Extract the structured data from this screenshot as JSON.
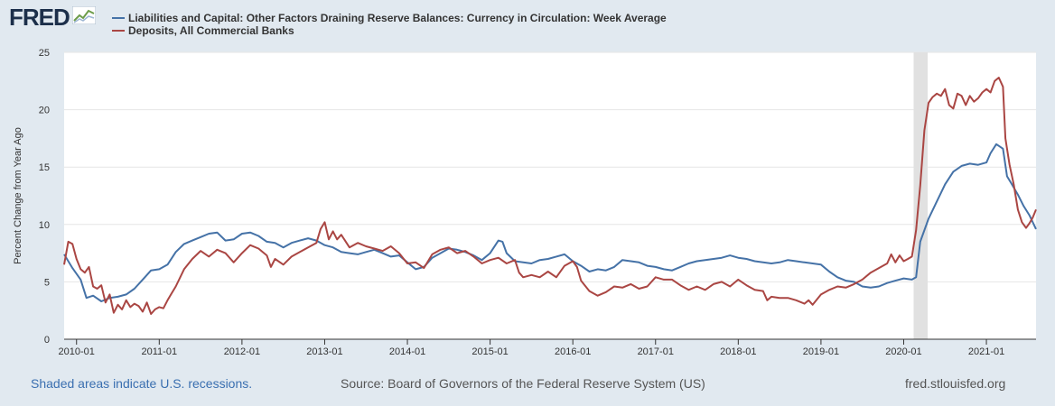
{
  "header": {
    "logo_text": "FRED",
    "logo_icon": "fred-chart-icon"
  },
  "footer": {
    "recession_note": "Shaded areas indicate U.S. recessions.",
    "source": "Source: Board of Governors of the Federal Reserve System (US)",
    "site": "fred.stlouisfed.org"
  },
  "colors": {
    "background": "#e1e9f0",
    "plot_background": "#ffffff",
    "recession_shade": "#e1e1e1",
    "series_blue": "#4572a7",
    "series_red": "#aa4643"
  },
  "chart_data": {
    "type": "line",
    "title": "",
    "xlabel": "",
    "ylabel": "Percent Change from Year Ago",
    "ylim": [
      0,
      25
    ],
    "yticks": [
      "0",
      "5",
      "10",
      "15",
      "20",
      "25"
    ],
    "xlim": [
      2009.85,
      2021.6
    ],
    "xticks": [
      {
        "label": "2010-01",
        "value": 2010.0
      },
      {
        "label": "2011-01",
        "value": 2011.0
      },
      {
        "label": "2012-01",
        "value": 2012.0
      },
      {
        "label": "2013-01",
        "value": 2013.0
      },
      {
        "label": "2014-01",
        "value": 2014.0
      },
      {
        "label": "2015-01",
        "value": 2015.0
      },
      {
        "label": "2016-01",
        "value": 2016.0
      },
      {
        "label": "2017-01",
        "value": 2017.0
      },
      {
        "label": "2018-01",
        "value": 2018.0
      },
      {
        "label": "2019-01",
        "value": 2019.0
      },
      {
        "label": "2020-01",
        "value": 2020.0
      },
      {
        "label": "2021-01",
        "value": 2021.0
      }
    ],
    "recessions": [
      {
        "start": 2020.12,
        "end": 2020.29
      }
    ],
    "grid": true,
    "legend_position": "top-left",
    "series": [
      {
        "name": "Liabilities and Capital: Other Factors Draining Reserve Balances: Currency in Circulation: Week Average",
        "color": "#4572a7",
        "points": [
          [
            2009.85,
            7.4
          ],
          [
            2009.95,
            6.2
          ],
          [
            2010.05,
            5.2
          ],
          [
            2010.12,
            3.6
          ],
          [
            2010.2,
            3.8
          ],
          [
            2010.3,
            3.3
          ],
          [
            2010.4,
            3.6
          ],
          [
            2010.5,
            3.7
          ],
          [
            2010.6,
            3.9
          ],
          [
            2010.7,
            4.4
          ],
          [
            2010.8,
            5.2
          ],
          [
            2010.9,
            6.0
          ],
          [
            2011.0,
            6.1
          ],
          [
            2011.1,
            6.5
          ],
          [
            2011.2,
            7.6
          ],
          [
            2011.3,
            8.3
          ],
          [
            2011.4,
            8.6
          ],
          [
            2011.5,
            8.9
          ],
          [
            2011.6,
            9.2
          ],
          [
            2011.7,
            9.3
          ],
          [
            2011.8,
            8.6
          ],
          [
            2011.9,
            8.7
          ],
          [
            2012.0,
            9.2
          ],
          [
            2012.1,
            9.3
          ],
          [
            2012.2,
            9.0
          ],
          [
            2012.3,
            8.5
          ],
          [
            2012.4,
            8.4
          ],
          [
            2012.5,
            8.0
          ],
          [
            2012.6,
            8.4
          ],
          [
            2012.7,
            8.6
          ],
          [
            2012.8,
            8.8
          ],
          [
            2012.9,
            8.6
          ],
          [
            2013.0,
            8.2
          ],
          [
            2013.1,
            8.0
          ],
          [
            2013.2,
            7.6
          ],
          [
            2013.3,
            7.5
          ],
          [
            2013.4,
            7.4
          ],
          [
            2013.5,
            7.6
          ],
          [
            2013.6,
            7.8
          ],
          [
            2013.7,
            7.5
          ],
          [
            2013.8,
            7.2
          ],
          [
            2013.9,
            7.3
          ],
          [
            2014.0,
            6.7
          ],
          [
            2014.1,
            6.1
          ],
          [
            2014.2,
            6.3
          ],
          [
            2014.3,
            7.1
          ],
          [
            2014.4,
            7.5
          ],
          [
            2014.5,
            7.9
          ],
          [
            2014.6,
            7.8
          ],
          [
            2014.7,
            7.6
          ],
          [
            2014.8,
            7.3
          ],
          [
            2014.9,
            6.9
          ],
          [
            2015.0,
            7.5
          ],
          [
            2015.1,
            8.6
          ],
          [
            2015.15,
            8.5
          ],
          [
            2015.2,
            7.5
          ],
          [
            2015.3,
            6.8
          ],
          [
            2015.4,
            6.7
          ],
          [
            2015.5,
            6.6
          ],
          [
            2015.6,
            6.9
          ],
          [
            2015.7,
            7.0
          ],
          [
            2015.8,
            7.2
          ],
          [
            2015.9,
            7.4
          ],
          [
            2016.0,
            6.8
          ],
          [
            2016.1,
            6.4
          ],
          [
            2016.2,
            5.9
          ],
          [
            2016.3,
            6.1
          ],
          [
            2016.4,
            6.0
          ],
          [
            2016.5,
            6.3
          ],
          [
            2016.6,
            6.9
          ],
          [
            2016.7,
            6.8
          ],
          [
            2016.8,
            6.7
          ],
          [
            2016.9,
            6.4
          ],
          [
            2017.0,
            6.3
          ],
          [
            2017.1,
            6.1
          ],
          [
            2017.2,
            6.0
          ],
          [
            2017.3,
            6.3
          ],
          [
            2017.4,
            6.6
          ],
          [
            2017.5,
            6.8
          ],
          [
            2017.6,
            6.9
          ],
          [
            2017.7,
            7.0
          ],
          [
            2017.8,
            7.1
          ],
          [
            2017.9,
            7.3
          ],
          [
            2018.0,
            7.1
          ],
          [
            2018.1,
            7.0
          ],
          [
            2018.2,
            6.8
          ],
          [
            2018.3,
            6.7
          ],
          [
            2018.4,
            6.6
          ],
          [
            2018.5,
            6.7
          ],
          [
            2018.6,
            6.9
          ],
          [
            2018.7,
            6.8
          ],
          [
            2018.8,
            6.7
          ],
          [
            2018.9,
            6.6
          ],
          [
            2019.0,
            6.5
          ],
          [
            2019.1,
            5.9
          ],
          [
            2019.2,
            5.4
          ],
          [
            2019.3,
            5.1
          ],
          [
            2019.4,
            5.0
          ],
          [
            2019.5,
            4.6
          ],
          [
            2019.6,
            4.5
          ],
          [
            2019.7,
            4.6
          ],
          [
            2019.8,
            4.9
          ],
          [
            2019.9,
            5.1
          ],
          [
            2020.0,
            5.3
          ],
          [
            2020.1,
            5.2
          ],
          [
            2020.15,
            5.4
          ],
          [
            2020.2,
            8.5
          ],
          [
            2020.3,
            10.5
          ],
          [
            2020.4,
            12.0
          ],
          [
            2020.5,
            13.5
          ],
          [
            2020.6,
            14.6
          ],
          [
            2020.7,
            15.1
          ],
          [
            2020.8,
            15.3
          ],
          [
            2020.9,
            15.2
          ],
          [
            2021.0,
            15.4
          ],
          [
            2021.05,
            16.2
          ],
          [
            2021.12,
            17.0
          ],
          [
            2021.2,
            16.6
          ],
          [
            2021.25,
            14.2
          ],
          [
            2021.3,
            13.6
          ],
          [
            2021.38,
            12.6
          ],
          [
            2021.45,
            11.6
          ],
          [
            2021.52,
            10.8
          ],
          [
            2021.6,
            9.6
          ]
        ]
      },
      {
        "name": "Deposits, All Commercial Banks",
        "color": "#aa4643",
        "points": [
          [
            2009.85,
            6.5
          ],
          [
            2009.9,
            8.5
          ],
          [
            2009.95,
            8.3
          ],
          [
            2010.0,
            7.0
          ],
          [
            2010.05,
            6.1
          ],
          [
            2010.1,
            5.8
          ],
          [
            2010.15,
            6.3
          ],
          [
            2010.2,
            4.6
          ],
          [
            2010.25,
            4.4
          ],
          [
            2010.3,
            4.7
          ],
          [
            2010.35,
            3.2
          ],
          [
            2010.4,
            3.9
          ],
          [
            2010.45,
            2.3
          ],
          [
            2010.5,
            3.0
          ],
          [
            2010.55,
            2.6
          ],
          [
            2010.6,
            3.4
          ],
          [
            2010.65,
            2.8
          ],
          [
            2010.7,
            3.1
          ],
          [
            2010.75,
            2.9
          ],
          [
            2010.8,
            2.4
          ],
          [
            2010.85,
            3.2
          ],
          [
            2010.9,
            2.2
          ],
          [
            2010.95,
            2.6
          ],
          [
            2011.0,
            2.8
          ],
          [
            2011.05,
            2.7
          ],
          [
            2011.1,
            3.4
          ],
          [
            2011.15,
            4.0
          ],
          [
            2011.2,
            4.6
          ],
          [
            2011.3,
            6.1
          ],
          [
            2011.4,
            7.0
          ],
          [
            2011.5,
            7.7
          ],
          [
            2011.6,
            7.2
          ],
          [
            2011.7,
            7.8
          ],
          [
            2011.8,
            7.5
          ],
          [
            2011.9,
            6.7
          ],
          [
            2012.0,
            7.5
          ],
          [
            2012.1,
            8.2
          ],
          [
            2012.2,
            7.9
          ],
          [
            2012.3,
            7.3
          ],
          [
            2012.35,
            6.3
          ],
          [
            2012.4,
            7.0
          ],
          [
            2012.5,
            6.5
          ],
          [
            2012.6,
            7.2
          ],
          [
            2012.7,
            7.6
          ],
          [
            2012.8,
            8.0
          ],
          [
            2012.9,
            8.4
          ],
          [
            2012.95,
            9.6
          ],
          [
            2013.0,
            10.2
          ],
          [
            2013.05,
            8.7
          ],
          [
            2013.1,
            9.4
          ],
          [
            2013.15,
            8.7
          ],
          [
            2013.2,
            9.1
          ],
          [
            2013.3,
            8.0
          ],
          [
            2013.4,
            8.4
          ],
          [
            2013.5,
            8.1
          ],
          [
            2013.6,
            7.9
          ],
          [
            2013.7,
            7.7
          ],
          [
            2013.8,
            8.1
          ],
          [
            2013.9,
            7.5
          ],
          [
            2014.0,
            6.6
          ],
          [
            2014.1,
            6.7
          ],
          [
            2014.2,
            6.2
          ],
          [
            2014.3,
            7.4
          ],
          [
            2014.4,
            7.8
          ],
          [
            2014.5,
            8.0
          ],
          [
            2014.6,
            7.5
          ],
          [
            2014.7,
            7.7
          ],
          [
            2014.8,
            7.2
          ],
          [
            2014.9,
            6.6
          ],
          [
            2015.0,
            6.9
          ],
          [
            2015.1,
            7.1
          ],
          [
            2015.2,
            6.6
          ],
          [
            2015.3,
            6.9
          ],
          [
            2015.35,
            5.8
          ],
          [
            2015.4,
            5.4
          ],
          [
            2015.5,
            5.6
          ],
          [
            2015.6,
            5.4
          ],
          [
            2015.7,
            5.9
          ],
          [
            2015.8,
            5.4
          ],
          [
            2015.9,
            6.4
          ],
          [
            2016.0,
            6.8
          ],
          [
            2016.05,
            6.3
          ],
          [
            2016.1,
            5.1
          ],
          [
            2016.2,
            4.2
          ],
          [
            2016.3,
            3.8
          ],
          [
            2016.4,
            4.1
          ],
          [
            2016.5,
            4.6
          ],
          [
            2016.6,
            4.5
          ],
          [
            2016.7,
            4.8
          ],
          [
            2016.8,
            4.4
          ],
          [
            2016.9,
            4.6
          ],
          [
            2017.0,
            5.4
          ],
          [
            2017.1,
            5.2
          ],
          [
            2017.2,
            5.2
          ],
          [
            2017.3,
            4.7
          ],
          [
            2017.4,
            4.3
          ],
          [
            2017.5,
            4.6
          ],
          [
            2017.6,
            4.3
          ],
          [
            2017.7,
            4.8
          ],
          [
            2017.8,
            5.0
          ],
          [
            2017.9,
            4.6
          ],
          [
            2018.0,
            5.2
          ],
          [
            2018.1,
            4.7
          ],
          [
            2018.2,
            4.3
          ],
          [
            2018.3,
            4.2
          ],
          [
            2018.35,
            3.4
          ],
          [
            2018.4,
            3.7
          ],
          [
            2018.5,
            3.6
          ],
          [
            2018.6,
            3.6
          ],
          [
            2018.7,
            3.4
          ],
          [
            2018.8,
            3.1
          ],
          [
            2018.85,
            3.4
          ],
          [
            2018.9,
            3.0
          ],
          [
            2019.0,
            3.9
          ],
          [
            2019.1,
            4.3
          ],
          [
            2019.2,
            4.6
          ],
          [
            2019.3,
            4.5
          ],
          [
            2019.4,
            4.8
          ],
          [
            2019.5,
            5.2
          ],
          [
            2019.6,
            5.8
          ],
          [
            2019.7,
            6.2
          ],
          [
            2019.8,
            6.6
          ],
          [
            2019.85,
            7.4
          ],
          [
            2019.9,
            6.7
          ],
          [
            2019.95,
            7.3
          ],
          [
            2020.0,
            6.8
          ],
          [
            2020.05,
            7.0
          ],
          [
            2020.1,
            7.2
          ],
          [
            2020.15,
            9.5
          ],
          [
            2020.2,
            13.4
          ],
          [
            2020.25,
            18.2
          ],
          [
            2020.3,
            20.6
          ],
          [
            2020.35,
            21.1
          ],
          [
            2020.4,
            21.4
          ],
          [
            2020.45,
            21.2
          ],
          [
            2020.5,
            21.8
          ],
          [
            2020.55,
            20.4
          ],
          [
            2020.6,
            20.1
          ],
          [
            2020.65,
            21.4
          ],
          [
            2020.7,
            21.2
          ],
          [
            2020.75,
            20.4
          ],
          [
            2020.8,
            21.2
          ],
          [
            2020.85,
            20.7
          ],
          [
            2020.9,
            21.0
          ],
          [
            2020.95,
            21.5
          ],
          [
            2021.0,
            21.8
          ],
          [
            2021.05,
            21.5
          ],
          [
            2021.1,
            22.5
          ],
          [
            2021.15,
            22.8
          ],
          [
            2021.2,
            22.0
          ],
          [
            2021.23,
            17.5
          ],
          [
            2021.28,
            15.2
          ],
          [
            2021.33,
            13.5
          ],
          [
            2021.38,
            11.3
          ],
          [
            2021.43,
            10.2
          ],
          [
            2021.48,
            9.7
          ],
          [
            2021.52,
            10.1
          ],
          [
            2021.56,
            10.6
          ],
          [
            2021.6,
            11.3
          ]
        ]
      }
    ]
  }
}
